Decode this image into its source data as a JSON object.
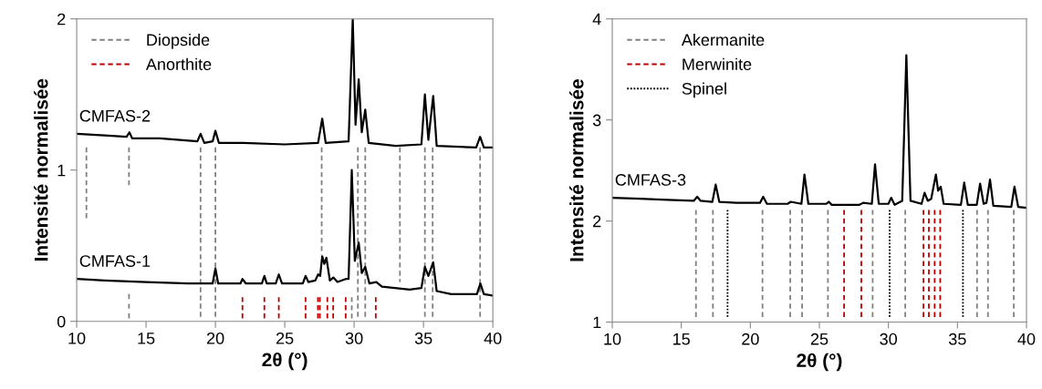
{
  "chart_data": [
    {
      "type": "line",
      "xlabel": "2θ (°)",
      "ylabel": "Intensité normalisée",
      "xlim": [
        10,
        40
      ],
      "xticks": [
        10,
        15,
        20,
        25,
        30,
        35,
        40
      ],
      "ylim": [
        0,
        2
      ],
      "yticks": [
        0,
        1,
        2
      ],
      "legend": "top left",
      "grid": false,
      "series": [
        {
          "name": "Diopside",
          "color": "#808080",
          "line_style": "dashed",
          "x": [
            10.7,
            10.7,
            null,
            13.77,
            13.77,
            null,
            18.93,
            18.93,
            null,
            20.0,
            20.0,
            null,
            27.66,
            27.66,
            null,
            29.83,
            29.83,
            null,
            30.27,
            30.27,
            null,
            30.8,
            30.8,
            null,
            33.3,
            33.3,
            null,
            35.1,
            35.1,
            null,
            35.66,
            35.66,
            null,
            39.08,
            39.08
          ],
          "values": [
            1.15,
            0.67,
            null,
            1.15,
            0.9,
            null,
            1.15,
            0.02,
            null,
            1.15,
            0.02,
            null,
            1.15,
            0.44,
            null,
            0.16,
            0.02,
            null,
            1.15,
            0.02,
            null,
            1.15,
            0.02,
            null,
            1.15,
            0.26,
            null,
            1.15,
            0.02,
            null,
            1.15,
            0.02,
            null,
            1.15,
            0.02
          ]
        },
        {
          "color": "#808080",
          "line_style": "dashed",
          "x": [
            13.77,
            13.77
          ],
          "values": [
            0.18,
            0.02
          ]
        },
        {
          "name": "Anorthite",
          "color": "#c00000",
          "line_style": "dashed",
          "x": [
            21.95,
            21.95,
            null,
            23.53,
            23.53,
            null,
            24.57,
            24.57,
            null,
            26.5,
            26.5,
            null,
            27.39,
            27.39,
            null,
            27.53,
            27.53,
            null,
            28.07,
            28.07,
            null,
            28.49,
            28.49,
            null,
            29.39,
            29.39,
            null,
            31.56,
            31.56
          ],
          "values": [
            0.16,
            0.02,
            null,
            0.16,
            0.02,
            null,
            0.16,
            0.02,
            null,
            0.16,
            0.02,
            null,
            0.16,
            0.02,
            null,
            0.16,
            0.02,
            null,
            0.16,
            0.02,
            null,
            0.16,
            0.02,
            null,
            0.16,
            0.02,
            null,
            0.16,
            0.02
          ]
        },
        {
          "name": "CMFAS-2",
          "color": "#000000",
          "line_style": "solid",
          "x": [
            10,
            12,
            13.6,
            13.8,
            14.0,
            16,
            18.7,
            18.93,
            19.2,
            19.8,
            20.0,
            20.25,
            22,
            25,
            27.4,
            27.7,
            27.95,
            29.6,
            29.9,
            30.1,
            30.33,
            30.55,
            30.8,
            31.05,
            33,
            34.85,
            35.1,
            35.35,
            35.7,
            35.95,
            38.8,
            39.08,
            39.35,
            40
          ],
          "values": [
            1.24,
            1.23,
            1.22,
            1.25,
            1.21,
            1.21,
            1.19,
            1.24,
            1.18,
            1.19,
            1.26,
            1.18,
            1.18,
            1.17,
            1.18,
            1.34,
            1.18,
            1.19,
            2.0,
            1.3,
            1.6,
            1.25,
            1.4,
            1.18,
            1.16,
            1.17,
            1.5,
            1.2,
            1.49,
            1.16,
            1.15,
            1.22,
            1.15,
            1.15
          ]
        },
        {
          "name": "CMFAS-1",
          "color": "#000000",
          "line_style": "solid",
          "x": [
            10,
            12,
            15,
            18,
            19.8,
            20.0,
            20.2,
            21.8,
            21.95,
            22.2,
            23.35,
            23.53,
            23.7,
            24.35,
            24.57,
            24.8,
            26.3,
            26.5,
            26.7,
            27.2,
            27.4,
            27.55,
            27.7,
            27.85,
            28.0,
            28.25,
            28.5,
            28.8,
            29.4,
            29.6,
            29.83,
            30.05,
            30.33,
            30.55,
            30.8,
            31.1,
            31.6,
            32,
            34,
            34.85,
            35.1,
            35.35,
            35.7,
            35.95,
            37,
            38.85,
            39.1,
            39.35,
            40
          ],
          "values": [
            0.28,
            0.27,
            0.26,
            0.25,
            0.25,
            0.35,
            0.25,
            0.25,
            0.28,
            0.25,
            0.25,
            0.3,
            0.25,
            0.25,
            0.31,
            0.25,
            0.25,
            0.3,
            0.26,
            0.27,
            0.31,
            0.3,
            0.43,
            0.38,
            0.42,
            0.27,
            0.29,
            0.26,
            0.28,
            0.28,
            1.0,
            0.4,
            0.52,
            0.32,
            0.36,
            0.25,
            0.26,
            0.23,
            0.21,
            0.22,
            0.36,
            0.3,
            0.39,
            0.2,
            0.18,
            0.18,
            0.25,
            0.18,
            0.17
          ]
        }
      ]
    },
    {
      "type": "line",
      "xlabel": "2θ (°)",
      "ylabel": "Intensité normalisée",
      "xlim": [
        10,
        40
      ],
      "xticks": [
        10,
        15,
        20,
        25,
        30,
        35,
        40
      ],
      "ylim": [
        1,
        4
      ],
      "yticks": [
        1,
        2,
        3,
        4
      ],
      "legend": "top left",
      "grid": false,
      "series": [
        {
          "name": "Akermanite",
          "color": "#808080",
          "line_style": "dashed",
          "x": [
            16.06,
            16.06,
            null,
            17.29,
            17.29,
            null,
            20.88,
            20.88,
            null,
            22.89,
            22.89,
            null,
            23.75,
            23.75,
            null,
            25.62,
            25.62,
            null,
            28.86,
            28.86,
            null,
            31.22,
            31.22,
            null,
            36.42,
            36.42,
            null,
            37.21,
            37.21,
            null,
            39.08,
            39.08
          ],
          "values": [
            2.11,
            1.05,
            null,
            2.11,
            1.05,
            null,
            2.11,
            1.05,
            null,
            2.11,
            1.05,
            null,
            2.11,
            1.05,
            null,
            2.11,
            1.05,
            null,
            2.11,
            1.05,
            null,
            2.11,
            1.05,
            null,
            2.11,
            1.05,
            null,
            2.11,
            1.05,
            null,
            2.11,
            1.05
          ]
        },
        {
          "name": "Merwinite",
          "color": "#c00000",
          "line_style": "dashed",
          "x": [
            26.79,
            26.79,
            null,
            28.04,
            28.04,
            null,
            32.54,
            32.54,
            null,
            32.93,
            32.93,
            null,
            33.35,
            33.35,
            null,
            33.75,
            33.75
          ],
          "values": [
            2.11,
            1.05,
            null,
            2.11,
            1.05,
            null,
            2.11,
            1.05,
            null,
            2.11,
            1.05,
            null,
            2.11,
            1.05,
            null,
            2.11,
            1.05
          ]
        },
        {
          "name": "Spinel",
          "color": "#000000",
          "line_style": "dotted",
          "x": [
            18.35,
            18.35,
            null,
            30.09,
            30.09,
            null,
            35.4,
            35.4
          ],
          "values": [
            2.11,
            1.05,
            null,
            2.11,
            1.05,
            null,
            2.11,
            1.05
          ]
        },
        {
          "name": "CMFAS-3",
          "color": "#000000",
          "line_style": "solid",
          "x": [
            10,
            12,
            14,
            15.9,
            16.15,
            16.4,
            17.25,
            17.49,
            17.75,
            19,
            20.7,
            20.93,
            21.2,
            22.7,
            22.93,
            23.7,
            23.92,
            24.2,
            25.5,
            25.68,
            25.9,
            27.9,
            28.18,
            28.8,
            29.03,
            29.3,
            30.0,
            30.2,
            30.45,
            31.0,
            31.3,
            31.6,
            32.4,
            32.62,
            32.85,
            33.1,
            33.44,
            33.6,
            33.79,
            34.0,
            35.25,
            35.49,
            35.75,
            36.4,
            36.64,
            36.9,
            37.1,
            37.36,
            37.6,
            38.9,
            39.13,
            39.4,
            40
          ],
          "values": [
            2.23,
            2.22,
            2.21,
            2.2,
            2.24,
            2.2,
            2.19,
            2.36,
            2.19,
            2.18,
            2.18,
            2.24,
            2.17,
            2.17,
            2.19,
            2.17,
            2.46,
            2.17,
            2.17,
            2.19,
            2.16,
            2.16,
            2.18,
            2.17,
            2.56,
            2.17,
            2.17,
            2.23,
            2.16,
            2.2,
            3.64,
            2.2,
            2.17,
            2.28,
            2.2,
            2.22,
            2.46,
            2.3,
            2.34,
            2.17,
            2.16,
            2.38,
            2.16,
            2.16,
            2.37,
            2.17,
            2.18,
            2.41,
            2.15,
            2.14,
            2.34,
            2.14,
            2.13
          ]
        }
      ]
    }
  ]
}
